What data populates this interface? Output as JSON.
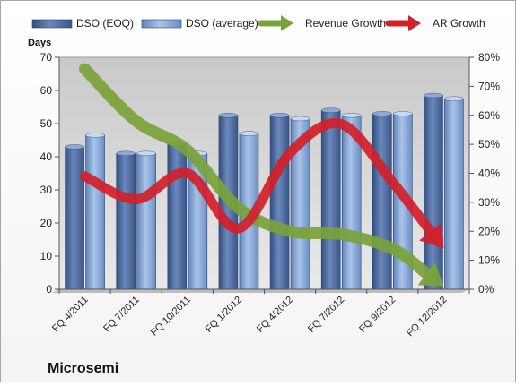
{
  "chart_data": {
    "type": "bar",
    "title": "Microsemi",
    "ylabel": "Days",
    "categories": [
      "FQ 4/2011",
      "FQ 7/2011",
      "FQ 10/2011",
      "FQ 1/2012",
      "FQ 4/2012",
      "FQ 7/2012",
      "FQ 9/2012",
      "FQ 12/2012"
    ],
    "ylim": [
      0,
      70
    ],
    "yticks": [
      0,
      10,
      20,
      30,
      40,
      50,
      60,
      70
    ],
    "y2lim": [
      0,
      80
    ],
    "y2ticks": [
      "0%",
      "10%",
      "20%",
      "30%",
      "40%",
      "50%",
      "60%",
      "70%",
      "80%"
    ],
    "series": [
      {
        "name": "DSO (EOQ)",
        "type": "bar",
        "color": "#4f6fa6",
        "values": [
          43,
          41,
          44,
          52.5,
          52.5,
          54,
          53,
          58.5
        ]
      },
      {
        "name": "DSO (average)",
        "type": "bar",
        "color": "#7fa3d6",
        "values": [
          46.5,
          41,
          41,
          47,
          51.5,
          52.5,
          53,
          57.5
        ]
      },
      {
        "name": "Revenue Growth",
        "type": "arrow-line",
        "axis": "secondary",
        "color": "#7aa23a",
        "values": [
          76,
          58,
          48,
          28,
          20,
          19,
          14,
          1
        ]
      },
      {
        "name": "AR Growth",
        "type": "arrow-line",
        "axis": "secondary",
        "color": "#d2202a",
        "values": [
          39,
          31,
          40,
          21,
          47,
          57,
          37,
          14
        ]
      }
    ],
    "legend_position": "top",
    "grid": false
  }
}
